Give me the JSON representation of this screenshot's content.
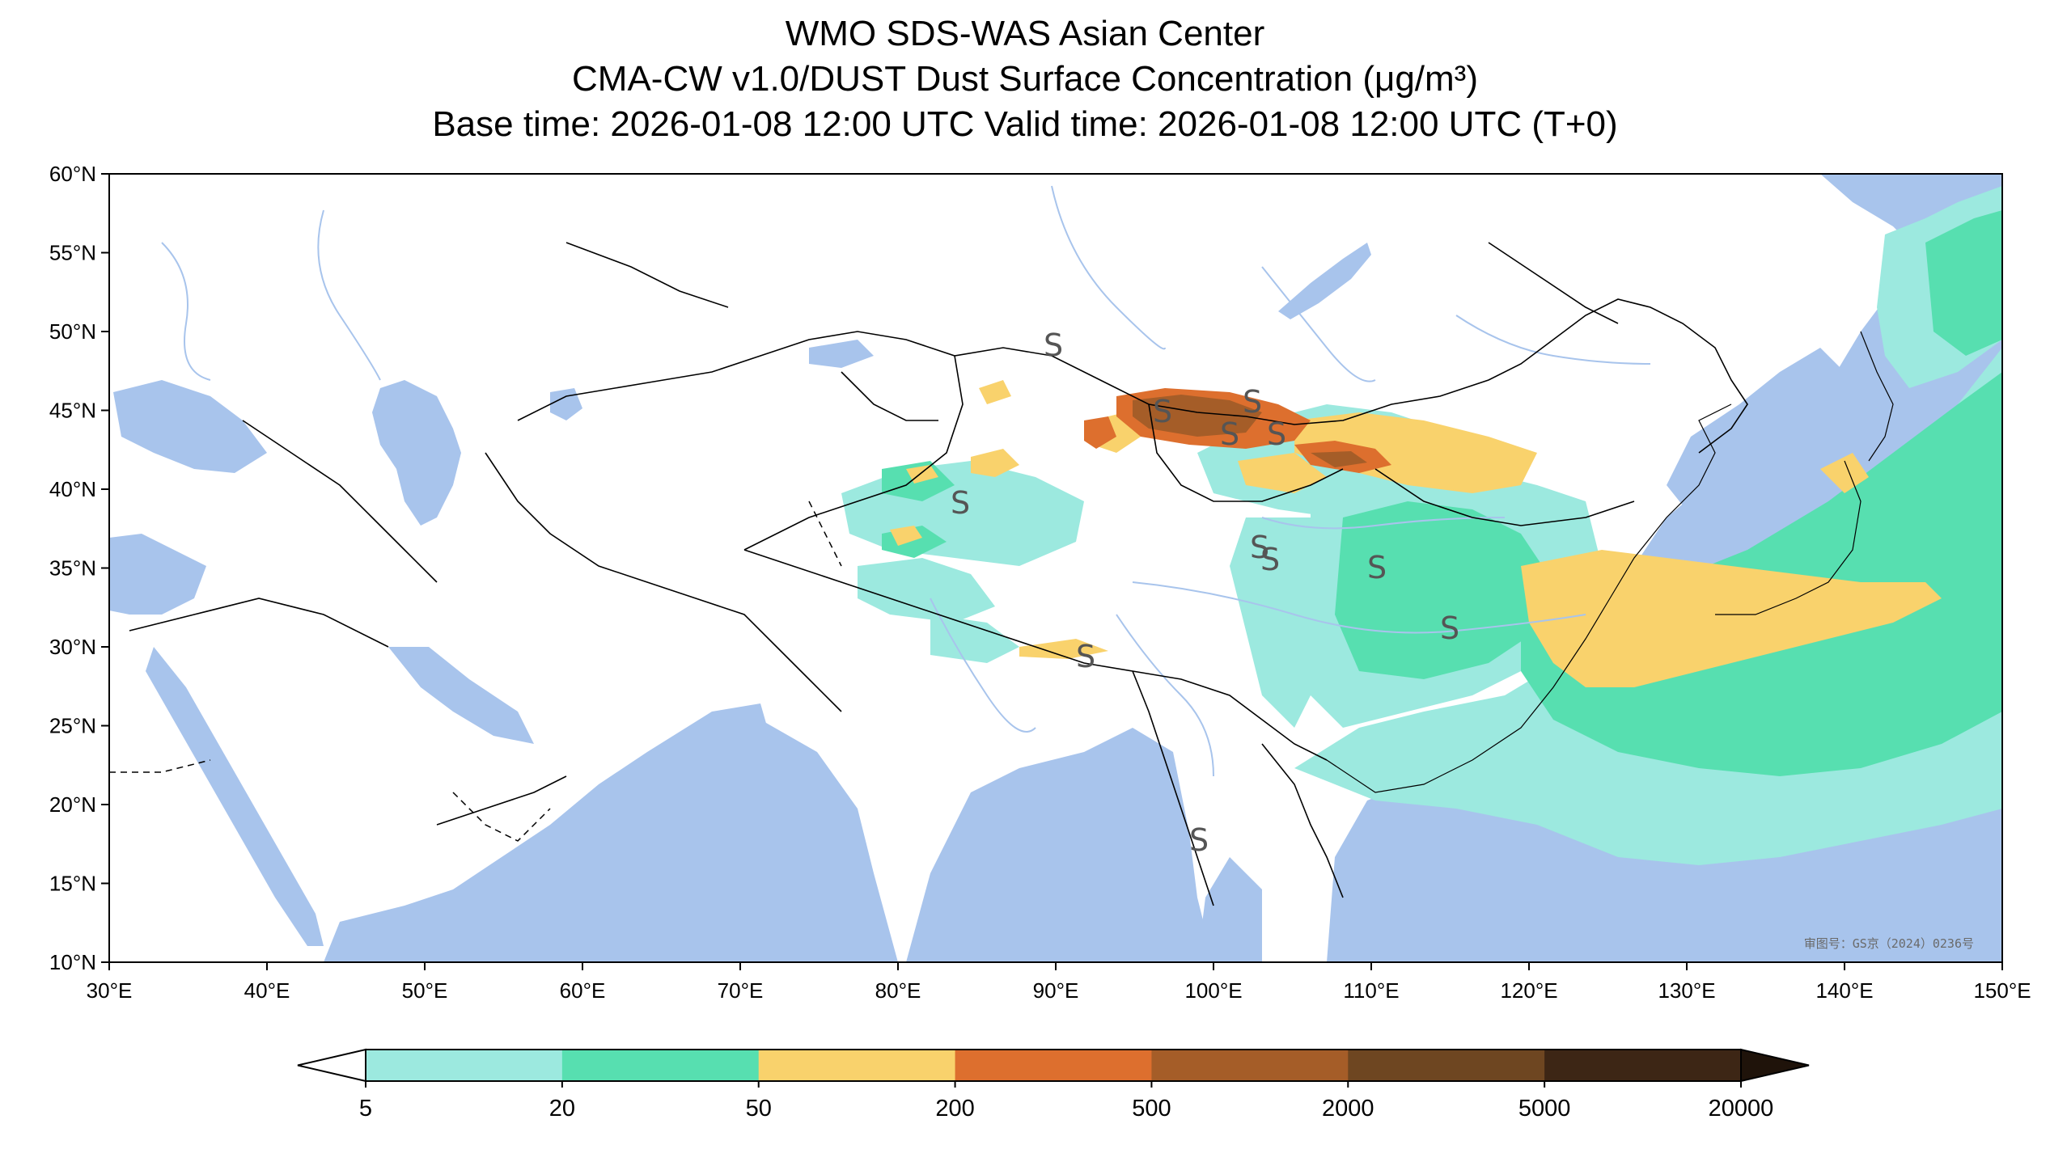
{
  "titles": {
    "line1": "WMO SDS-WAS Asian Center",
    "line2": "CMA-CW v1.0/DUST Dust Surface Concentration (μg/m³)",
    "line3": "Base time: 2026-01-08 12:00 UTC Valid time: 2026-01-08 12:00 UTC (T+0)"
  },
  "map": {
    "extent": {
      "lon_min": 30,
      "lon_max": 150,
      "lat_min": 10,
      "lat_max": 60
    },
    "lon_ticks": [
      "30°E",
      "40°E",
      "50°E",
      "60°E",
      "70°E",
      "80°E",
      "90°E",
      "100°E",
      "110°E",
      "120°E",
      "130°E",
      "140°E",
      "150°E"
    ],
    "lat_ticks": [
      "60°N",
      "55°N",
      "50°N",
      "45°N",
      "40°N",
      "35°N",
      "30°N",
      "25°N",
      "20°N",
      "15°N",
      "10°N"
    ],
    "approval_number": "审图号：GS京（2024）0236号",
    "colors": {
      "ocean": "#a8c4ec",
      "land": "#ffffff",
      "border": "#000000",
      "river": "#a8c4ec"
    },
    "dust_symbol": "S"
  },
  "colorbar": {
    "ticks": [
      "5",
      "20",
      "50",
      "200",
      "500",
      "2000",
      "5000",
      "20000"
    ],
    "colors": [
      "#9ce9df",
      "#57dfb0",
      "#f9d26c",
      "#dd6f2e",
      "#a55d28",
      "#6e4621",
      "#3d2615"
    ],
    "under_color": "#ffffff",
    "over_color": "#1f130a"
  }
}
